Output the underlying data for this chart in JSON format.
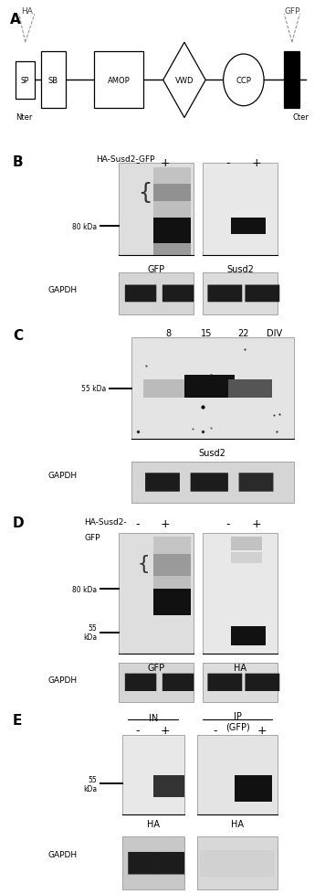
{
  "fig_width": 3.56,
  "fig_height": 9.79,
  "bg_color": "#ffffff",
  "panel_A": {
    "label": "A",
    "nter": "Nter",
    "cter": "Cter",
    "ha_label": "HA",
    "gfp_label": "GFP"
  },
  "panel_B": {
    "label": "B",
    "row_label": "HA-Susd2-GFP",
    "minus_plus": [
      "-",
      "+",
      "-",
      "+"
    ],
    "blot_labels": [
      "GFP",
      "Susd2"
    ],
    "marker_label": "80 kDa",
    "gapdh_label": "GAPDH"
  },
  "panel_C": {
    "label": "C",
    "div_labels": [
      "8",
      "15",
      "22",
      "DIV"
    ],
    "marker_label": "55 kDa",
    "blot_label": "Susd2",
    "gapdh_label": "GAPDH"
  },
  "panel_D": {
    "label": "D",
    "row_label1": "HA-Susd2-",
    "row_label2": "GFP",
    "minus_plus": [
      "-",
      "+",
      "-",
      "+"
    ],
    "blot_labels": [
      "GFP",
      "HA"
    ],
    "marker_80": "80 kDa",
    "marker_55": "55\nkDa",
    "gapdh_label": "GAPDH"
  },
  "panel_E": {
    "label": "E",
    "in_label": "IN",
    "ip_label": "IP\n(GFP)",
    "minus_plus": [
      "-",
      "+",
      "-",
      "+"
    ],
    "marker_label": "55\nkDa",
    "ha_label": "HA",
    "gapdh_label": "GAPDH"
  }
}
